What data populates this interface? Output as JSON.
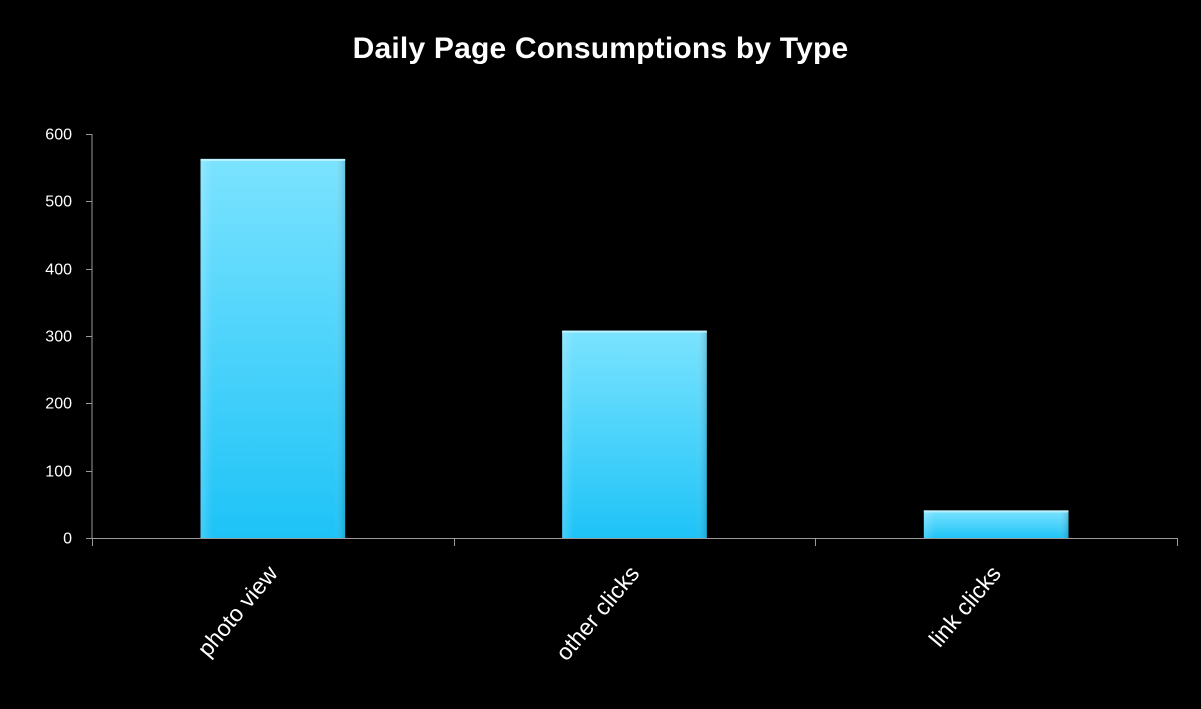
{
  "chart_data": {
    "type": "bar",
    "title": "Daily Page Consumptions by Type",
    "xlabel": "",
    "ylabel": "",
    "categories": [
      "photo view",
      "other clicks",
      "link clicks"
    ],
    "values": [
      563,
      308,
      41
    ],
    "ylim": [
      0,
      600
    ],
    "yticks": [
      "0",
      "100",
      "200",
      "300",
      "400",
      "500",
      "600"
    ],
    "grid": false,
    "legend": "none"
  },
  "colors": {
    "background": "#000000",
    "bar_top": "#7be3ff",
    "bar_bottom": "#1ec3f7",
    "axis": "#9a9a9a",
    "text": "#ffffff"
  }
}
